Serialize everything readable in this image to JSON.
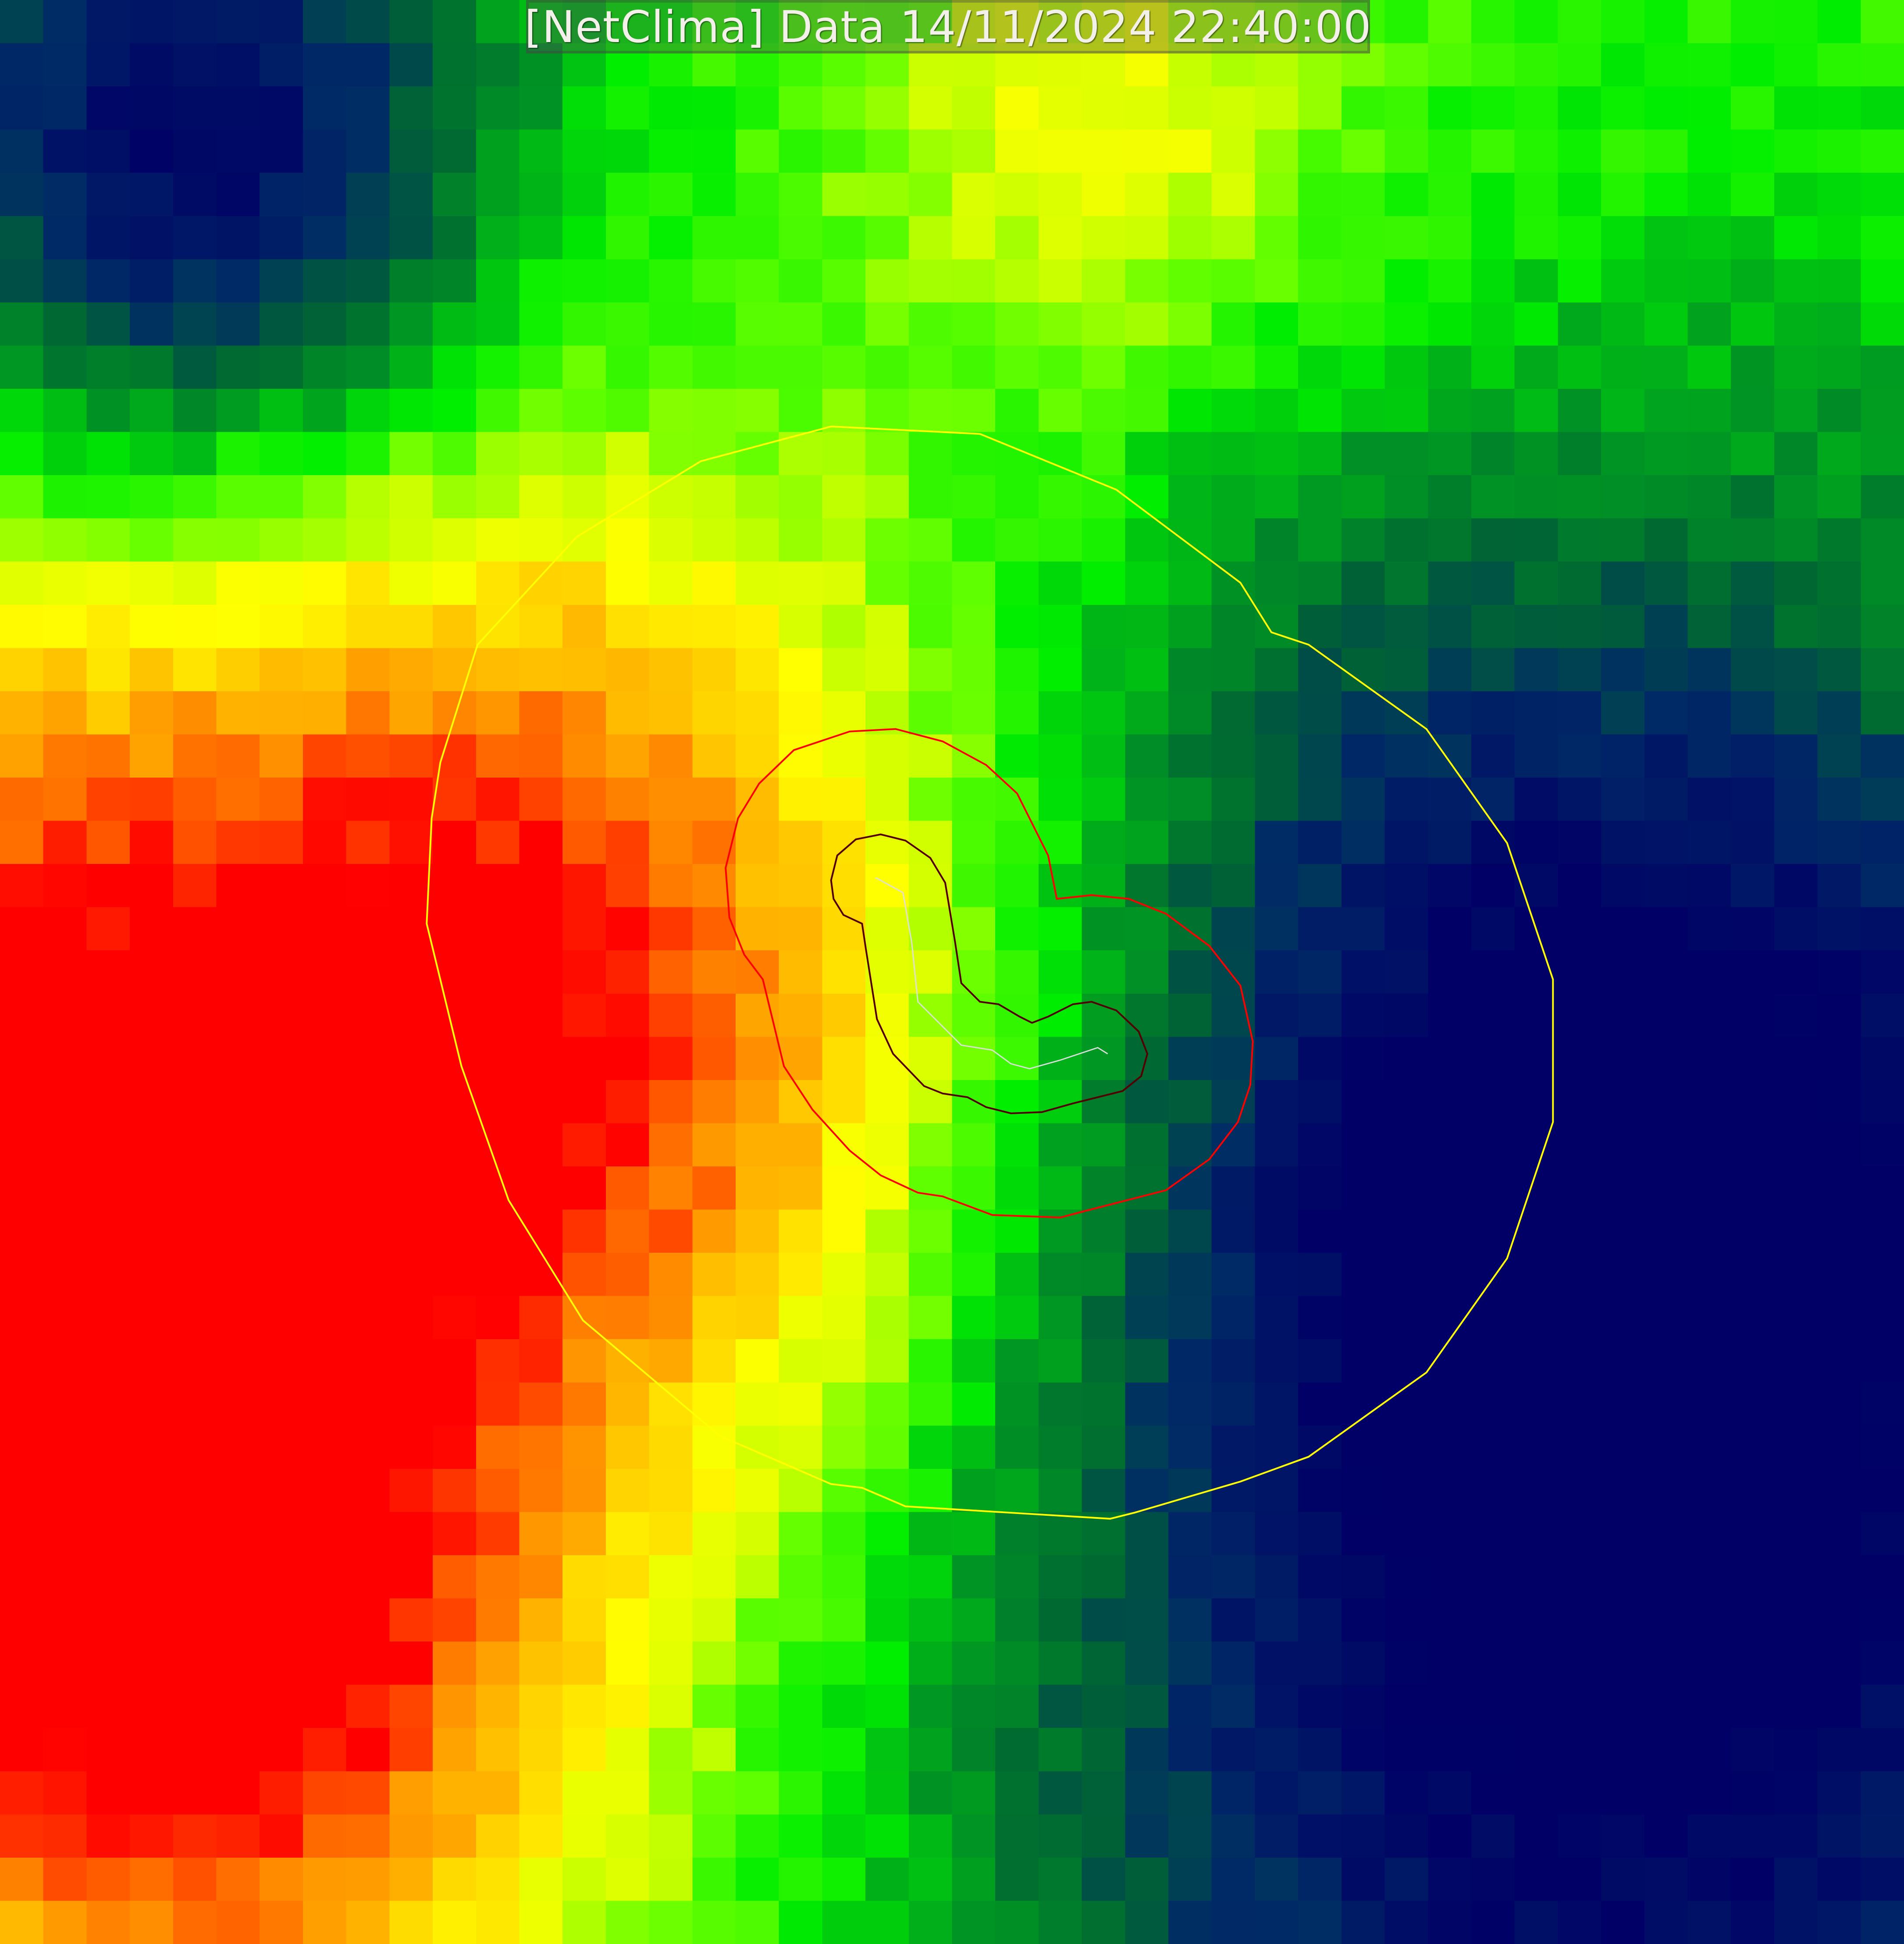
{
  "title": "[NetClima] Data 14/11/2024 22:40:00",
  "colors": {
    "palette": [
      "#000066",
      "#002a66",
      "#006633",
      "#009922",
      "#00ee00",
      "#66ff00",
      "#ccff00",
      "#ffff00",
      "#ffcc00",
      "#ff9900",
      "#ff5500",
      "#ff0000"
    ],
    "outer_contour": "#ffff00",
    "middle_contour": "#ff0000",
    "inner_contour": "#550000",
    "track": "#ffffff"
  }
}
